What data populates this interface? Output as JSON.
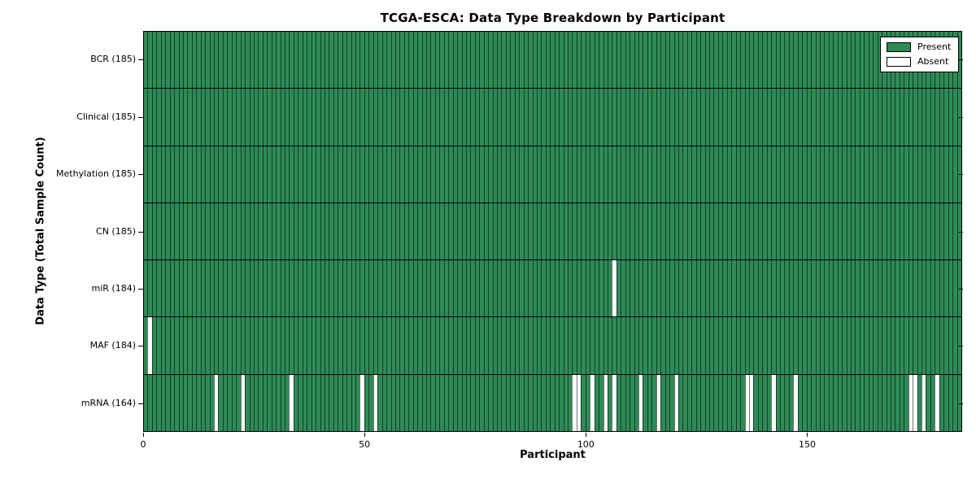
{
  "chart_data": {
    "type": "heatmap",
    "title": "TCGA-ESCA: Data Type Breakdown by Participant",
    "xlabel": "Participant",
    "ylabel": "Data Type (Total Sample Count)",
    "n_participants": 185,
    "xlim": [
      0,
      185
    ],
    "x_ticks": [
      "0",
      "50",
      "100",
      "150"
    ],
    "x_tick_values": [
      0,
      50,
      100,
      150
    ],
    "grid": false,
    "legend_position": "upper-right",
    "colors": {
      "present": "#2e8b57",
      "absent": "#ffffff",
      "edge": "#000000"
    },
    "legend": [
      {
        "label": "Present",
        "color": "#2e8b57"
      },
      {
        "label": "Absent",
        "color": "#ffffff"
      }
    ],
    "rows": [
      {
        "name": "bcr",
        "label": "BCR (185)",
        "present_count": 185,
        "absent": []
      },
      {
        "name": "clinical",
        "label": "Clinical (185)",
        "present_count": 185,
        "absent": []
      },
      {
        "name": "methylation",
        "label": "Methylation (185)",
        "present_count": 185,
        "absent": []
      },
      {
        "name": "cn",
        "label": "CN (185)",
        "present_count": 185,
        "absent": []
      },
      {
        "name": "mir",
        "label": "miR (184)",
        "present_count": 184,
        "absent": [
          106
        ]
      },
      {
        "name": "maf",
        "label": "MAF (184)",
        "present_count": 184,
        "absent": [
          1
        ]
      },
      {
        "name": "mrna",
        "label": "mRNA (164)",
        "present_count": 164,
        "absent": [
          16,
          22,
          33,
          49,
          52,
          97,
          98,
          101,
          104,
          106,
          112,
          116,
          120,
          136,
          137,
          142,
          147,
          173,
          174,
          176,
          179
        ]
      }
    ]
  }
}
